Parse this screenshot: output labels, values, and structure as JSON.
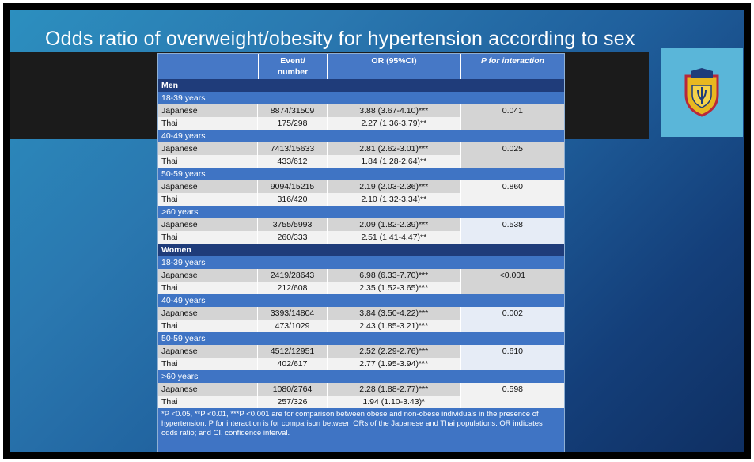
{
  "title": "Odds ratio of overweight/obesity for hypertension according to sex",
  "header": {
    "col2_line1": "Event/",
    "col2_line2": "number",
    "col3": "OR (95%CI)",
    "col4": "P for interaction"
  },
  "chart_data": {
    "type": "table",
    "columns": [
      "",
      "Event/ number",
      "OR (95%CI)",
      "P for interaction"
    ],
    "sections": [
      {
        "label": "Men",
        "groups": [
          {
            "age": "18-39 years",
            "p": "0.041",
            "rows": [
              {
                "pop": "Japanese",
                "event": "8874/31509",
                "or": "3.88 (3.67-4.10)***"
              },
              {
                "pop": "Thai",
                "event": "175/298",
                "or": "2.27 (1.36-3.79)**"
              }
            ]
          },
          {
            "age": "40-49 years",
            "p": "0.025",
            "rows": [
              {
                "pop": "Japanese",
                "event": "7413/15633",
                "or": "2.81 (2.62-3.01)***"
              },
              {
                "pop": "Thai",
                "event": "433/612",
                "or": "1.84 (1.28-2.64)**"
              }
            ]
          },
          {
            "age": "50-59 years",
            "p": "0.860",
            "rows": [
              {
                "pop": "Japanese",
                "event": "9094/15215",
                "or": "2.19 (2.03-2.36)***"
              },
              {
                "pop": "Thai",
                "event": "316/420",
                "or": "2.10 (1.32-3.34)**"
              }
            ]
          },
          {
            "age": ">60 years",
            "p": "0.538",
            "rows": [
              {
                "pop": "Japanese",
                "event": "3755/5993",
                "or": "2.09 (1.82-2.39)***"
              },
              {
                "pop": "Thai",
                "event": "260/333",
                "or": "2.51 (1.41-4.47)**"
              }
            ]
          }
        ]
      },
      {
        "label": "Women",
        "groups": [
          {
            "age": "18-39 years",
            "p": "<0.001",
            "rows": [
              {
                "pop": "Japanese",
                "event": "2419/28643",
                "or": "6.98 (6.33-7.70)***"
              },
              {
                "pop": "Thai",
                "event": "212/608",
                "or": "2.35 (1.52-3.65)***"
              }
            ]
          },
          {
            "age": "40-49 years",
            "p": "0.002",
            "rows": [
              {
                "pop": "Japanese",
                "event": "3393/14804",
                "or": "3.84 (3.50-4.22)***"
              },
              {
                "pop": "Thai",
                "event": "473/1029",
                "or": "2.43 (1.85-3.21)***"
              }
            ]
          },
          {
            "age": "50-59 years",
            "p": "0.610",
            "rows": [
              {
                "pop": "Japanese",
                "event": "4512/12951",
                "or": "2.52 (2.29-2.76)***"
              },
              {
                "pop": "Thai",
                "event": "402/617",
                "or": "2.77 (1.95-3.94)***"
              }
            ]
          },
          {
            "age": ">60 years",
            "p": "0.598",
            "rows": [
              {
                "pop": "Japanese",
                "event": "1080/2764",
                "or": "2.28 (1.88-2.77)***"
              },
              {
                "pop": "Thai",
                "event": "257/326",
                "or": "1.94 (1.10-3.43)*"
              }
            ]
          }
        ]
      }
    ]
  },
  "footnote": "*P <0.05, **P <0.01, ***P <0.001 are for comparison between obese and non-obese individuals in the presence of hypertension. P for interaction is for comparison between ORs of the Japanese and Thai populations. OR indicates odds ratio; and CI, confidence interval.",
  "logo": {
    "name": "university-seal-icon"
  }
}
